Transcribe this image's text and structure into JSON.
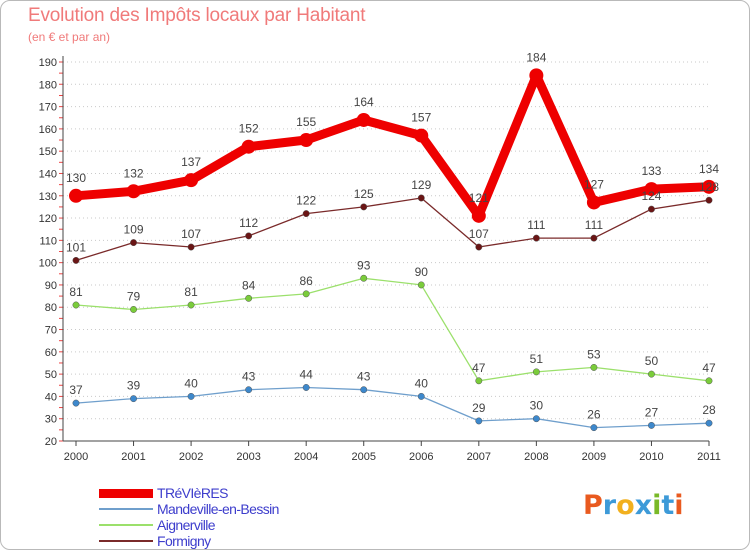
{
  "title": "Evolution des Impôts locaux par Habitant",
  "subtitle": "(en € et par an)",
  "logo": {
    "text": "Proxiti",
    "colors": [
      "#e95a1f",
      "#3d9ad8",
      "#f2b01e",
      "#3d9ad8",
      "#79b928",
      "#3d9ad8",
      "#e95a1f"
    ]
  },
  "chart_data": {
    "type": "line",
    "title": "Evolution des Impôts locaux par Habitant",
    "ylabel": "(en € et par an)",
    "xlabel": "",
    "x": [
      "2000",
      "2001",
      "2002",
      "2003",
      "2004",
      "2005",
      "2006",
      "2007",
      "2008",
      "2009",
      "2010",
      "2011"
    ],
    "ylim": [
      20,
      190
    ],
    "yticks": [
      20,
      30,
      40,
      50,
      60,
      70,
      80,
      90,
      100,
      110,
      120,
      130,
      140,
      150,
      160,
      170,
      180,
      190
    ],
    "grid": "horizontal dotted",
    "legend_position": "bottom-left",
    "series": [
      {
        "name": "TRéVIèRES",
        "color": "#ee0000",
        "width": 9,
        "point_color": "#ee0000",
        "values": [
          130,
          132,
          137,
          152,
          155,
          164,
          157,
          121,
          184,
          127,
          133,
          134
        ],
        "labels": [
          "130",
          "132",
          "137",
          "152",
          "155",
          "164",
          "157",
          "121",
          "184",
          "127",
          "133",
          "134"
        ]
      },
      {
        "name": "Mandeville-en-Bessin",
        "color": "#6f9fcc",
        "width": 1.3,
        "point_color": "#3d88cc",
        "values": [
          37,
          39,
          40,
          43,
          44,
          43,
          40,
          29,
          30,
          26,
          27,
          28
        ],
        "labels": [
          "37",
          "39",
          "40",
          "43",
          "44",
          "43",
          "40",
          "29",
          "30",
          "26",
          "27",
          "28"
        ]
      },
      {
        "name": "Aignerville",
        "color": "#9be06b",
        "width": 1.3,
        "point_color": "#7acc3a",
        "values": [
          81,
          79,
          81,
          84,
          86,
          93,
          90,
          47,
          51,
          53,
          50,
          47
        ],
        "labels": [
          "81",
          "79",
          "81",
          "84",
          "86",
          "93",
          "90",
          "47",
          "51",
          "53",
          "50",
          "47"
        ]
      },
      {
        "name": "Formigny",
        "color": "#7a2a2a",
        "width": 1.3,
        "point_color": "#6a1515",
        "values": [
          101,
          109,
          107,
          112,
          122,
          125,
          129,
          107,
          111,
          111,
          124,
          128
        ],
        "labels": [
          "101",
          "109",
          "107",
          "112",
          "122",
          "125",
          "129",
          "107",
          "111",
          "111",
          "124",
          "128"
        ]
      }
    ]
  }
}
